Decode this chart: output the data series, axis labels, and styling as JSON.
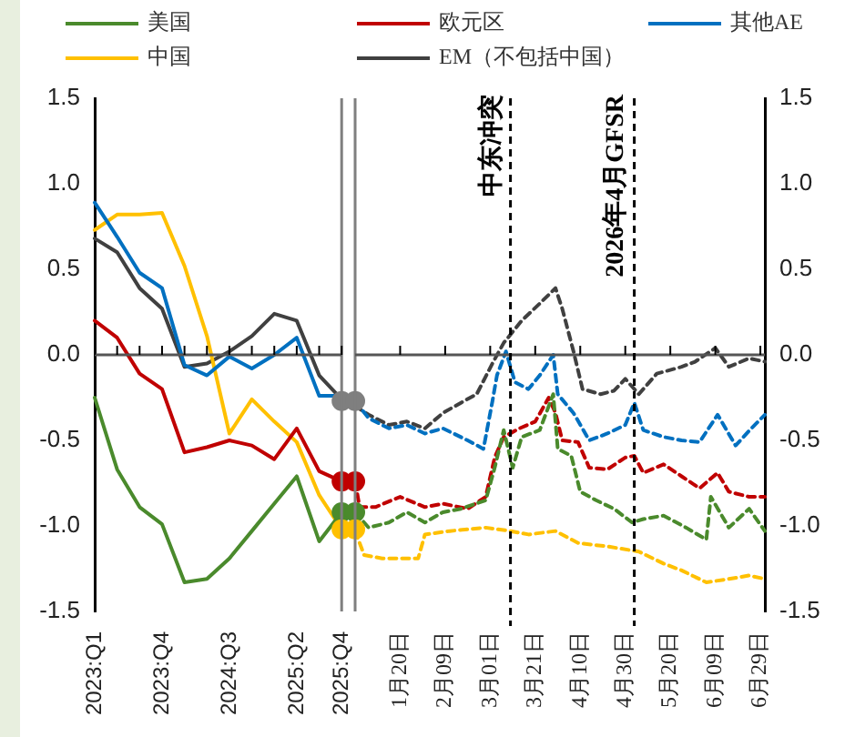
{
  "chart_data": [
    {
      "type": "line",
      "legend": "top",
      "categories": [
        "2023:Q1",
        null,
        null,
        "2023:Q4",
        null,
        null,
        "2024:Q3",
        null,
        null,
        "2025:Q2",
        null,
        "2025:Q4"
      ],
      "ylim": [
        -1.5,
        1.5
      ],
      "yticks": [
        -1.5,
        {
          "value": -1,
          "label": "-1.0"
        },
        -0.5,
        {
          "value": 0,
          "label": "0.0"
        },
        0.5,
        {
          "value": 1,
          "label": "1.0"
        },
        1.5
      ],
      "series": [
        {
          "name": "美国",
          "color": "#4a8a2c",
          "values": [
            -0.25,
            -0.67,
            -0.89,
            -0.99,
            -1.33,
            -1.31,
            -1.19,
            -1.03,
            -0.87,
            -0.71,
            -1.09,
            -0.92
          ]
        },
        {
          "name": "欧元区",
          "color": "#c00000",
          "values": [
            0.2,
            0.1,
            -0.11,
            -0.2,
            -0.57,
            -0.54,
            -0.5,
            -0.53,
            -0.61,
            -0.43,
            -0.68,
            -0.74
          ]
        },
        {
          "name": "其他AE",
          "color": "#0070c0",
          "values": [
            0.89,
            0.69,
            0.48,
            0.39,
            -0.06,
            -0.12,
            -0.01,
            -0.08,
            0.0,
            0.1,
            -0.24,
            -0.24
          ]
        },
        {
          "name": "中国",
          "color": "#ffc000",
          "values": [
            0.73,
            0.82,
            0.82,
            0.83,
            0.52,
            0.11,
            -0.46,
            -0.26,
            -0.39,
            -0.51,
            -0.82,
            -1.02
          ]
        },
        {
          "name": "EM（不包括中国）",
          "color": "#404040",
          "values": [
            0.68,
            0.6,
            0.39,
            0.27,
            -0.07,
            -0.05,
            0.02,
            0.11,
            0.24,
            0.2,
            -0.12,
            -0.26
          ]
        },
        {
          "type": "scatter",
          "marker": "circle",
          "x": [
            "2025:Q4",
            "2025:Q4",
            "2025:Q4",
            "2025:Q4"
          ],
          "values": [
            -0.27,
            -0.74,
            -0.92,
            -1.02
          ],
          "colors": [
            "#7f7f7f",
            "#c00000",
            "#4a8a2c",
            "#ffc000"
          ]
        }
      ]
    },
    {
      "type": "line",
      "line_style": "dashed",
      "xlim": [
        "2025-12-31",
        "2026-07-01"
      ],
      "xticks": [
        {
          "value": "2026-01-20",
          "label": "1月20日"
        },
        {
          "value": "2026-02-09",
          "label": "2月09日"
        },
        {
          "value": "2026-03-01",
          "label": "3月01日"
        },
        {
          "value": "2026-03-21",
          "label": "3月21日"
        },
        {
          "value": "2026-04-10",
          "label": "4月10日"
        },
        {
          "value": "2026-04-30",
          "label": "4月30日"
        },
        {
          "value": "2026-05-20",
          "label": "5月20日"
        },
        {
          "value": "2026-06-09",
          "label": "6月09日"
        },
        {
          "value": "2026-06-29",
          "label": "6月29日"
        }
      ],
      "ylim": [
        -1.5,
        1.5
      ],
      "yticks": [
        -1.5,
        {
          "value": -1,
          "label": "-1.0"
        },
        -0.5,
        {
          "value": 0,
          "label": "0.0"
        },
        0.5,
        {
          "value": 1,
          "label": "1.0"
        },
        1.5
      ],
      "ref_lines": [
        {
          "axis": "x",
          "value": "2026-03-10",
          "label": "中东冲突",
          "line_style": "dashed",
          "color": "#000000"
        },
        {
          "axis": "x",
          "value": "2026-05-04",
          "label": "2026年4月GFSR",
          "line_style": "dashed",
          "color": "#000000"
        }
      ],
      "series": [
        {
          "color": "#4a8a2c",
          "x": [
            "2025-12-31",
            "2026-01-06",
            "2026-01-15",
            "2026-01-23",
            "2026-01-31",
            "2026-02-08",
            "2026-02-16",
            "2026-02-27",
            "2026-03-03",
            "2026-03-07",
            "2026-03-11",
            "2026-03-15",
            "2026-03-23",
            "2026-03-29",
            "2026-03-31",
            "2026-04-06",
            "2026-04-10",
            "2026-04-17",
            "2026-04-25",
            "2026-05-03",
            "2026-05-08",
            "2026-05-17",
            "2026-05-27",
            "2026-06-05",
            "2026-06-07",
            "2026-06-15",
            "2026-06-24",
            "2026-07-01"
          ],
          "values": [
            -0.92,
            -1.01,
            -0.98,
            -0.92,
            -0.98,
            -0.92,
            -0.9,
            -0.85,
            -0.66,
            -0.44,
            -0.66,
            -0.48,
            -0.44,
            -0.23,
            -0.55,
            -0.59,
            -0.8,
            -0.85,
            -0.9,
            -0.98,
            -0.96,
            -0.94,
            -1.01,
            -1.08,
            -0.83,
            -1.01,
            -0.9,
            -1.03
          ]
        },
        {
          "color": "#c00000",
          "x": [
            "2025-12-31",
            "2026-01-02",
            "2026-01-09",
            "2026-01-20",
            "2026-01-31",
            "2026-02-08",
            "2026-02-19",
            "2026-02-27",
            "2026-03-03",
            "2026-03-07",
            "2026-03-14",
            "2026-03-21",
            "2026-03-27",
            "2026-03-30",
            "2026-04-02",
            "2026-04-09",
            "2026-04-14",
            "2026-04-22",
            "2026-04-30",
            "2026-05-04",
            "2026-05-08",
            "2026-05-17",
            "2026-05-25",
            "2026-06-02",
            "2026-06-10",
            "2026-06-15",
            "2026-06-24",
            "2026-07-01"
          ],
          "values": [
            -0.74,
            -0.89,
            -0.89,
            -0.83,
            -0.89,
            -0.87,
            -0.9,
            -0.83,
            -0.6,
            -0.48,
            -0.43,
            -0.39,
            -0.25,
            -0.34,
            -0.5,
            -0.51,
            -0.66,
            -0.67,
            -0.6,
            -0.59,
            -0.69,
            -0.64,
            -0.71,
            -0.78,
            -0.69,
            -0.8,
            -0.83,
            -0.83
          ]
        },
        {
          "color": "#0070c0",
          "x": [
            "2025-12-31",
            "2026-01-06",
            "2026-01-15",
            "2026-01-23",
            "2026-01-31",
            "2026-02-08",
            "2026-02-19",
            "2026-02-26",
            "2026-03-02",
            "2026-03-04",
            "2026-03-08",
            "2026-03-12",
            "2026-03-18",
            "2026-03-23",
            "2026-03-29",
            "2026-03-31",
            "2026-04-07",
            "2026-04-14",
            "2026-04-22",
            "2026-04-30",
            "2026-05-04",
            "2026-05-08",
            "2026-05-17",
            "2026-05-25",
            "2026-06-02",
            "2026-06-10",
            "2026-06-18",
            "2026-06-25",
            "2026-07-01"
          ],
          "values": [
            -0.27,
            -0.37,
            -0.43,
            -0.41,
            -0.46,
            -0.43,
            -0.5,
            -0.55,
            -0.27,
            -0.12,
            0.02,
            -0.16,
            -0.2,
            -0.12,
            0.0,
            -0.23,
            -0.34,
            -0.5,
            -0.46,
            -0.41,
            -0.28,
            -0.44,
            -0.48,
            -0.5,
            -0.51,
            -0.35,
            -0.53,
            -0.43,
            -0.35
          ]
        },
        {
          "color": "#ffc000",
          "x": [
            "2025-12-31",
            "2026-01-04",
            "2026-01-12",
            "2026-01-28",
            "2026-01-31",
            "2026-02-11",
            "2026-02-27",
            "2026-03-10",
            "2026-03-18",
            "2026-03-30",
            "2026-04-09",
            "2026-04-22",
            "2026-05-06",
            "2026-05-17",
            "2026-05-25",
            "2026-06-05",
            "2026-06-15",
            "2026-06-24",
            "2026-07-01"
          ],
          "values": [
            -1.03,
            -1.17,
            -1.19,
            -1.19,
            -1.05,
            -1.03,
            -1.01,
            -1.03,
            -1.05,
            -1.03,
            -1.1,
            -1.12,
            -1.15,
            -1.22,
            -1.26,
            -1.33,
            -1.31,
            -1.29,
            -1.31
          ]
        },
        {
          "color": "#404040",
          "x": [
            "2025-12-31",
            "2026-01-06",
            "2026-01-15",
            "2026-01-23",
            "2026-01-31",
            "2026-02-08",
            "2026-02-16",
            "2026-02-23",
            "2026-03-02",
            "2026-03-07",
            "2026-03-15",
            "2026-03-23",
            "2026-03-30",
            "2026-04-02",
            "2026-04-07",
            "2026-04-11",
            "2026-04-19",
            "2026-04-25",
            "2026-04-30",
            "2026-05-06",
            "2026-05-14",
            "2026-05-25",
            "2026-05-31",
            "2026-06-09",
            "2026-06-15",
            "2026-06-24",
            "2026-07-01"
          ],
          "values": [
            -0.3,
            -0.35,
            -0.41,
            -0.39,
            -0.43,
            -0.34,
            -0.28,
            -0.23,
            -0.05,
            0.07,
            0.2,
            0.3,
            0.39,
            0.27,
            0.02,
            -0.2,
            -0.23,
            -0.21,
            -0.14,
            -0.23,
            -0.11,
            -0.07,
            -0.04,
            0.04,
            -0.07,
            -0.02,
            -0.04
          ]
        },
        {
          "type": "scatter",
          "marker": "circle",
          "x": [
            "2025-12-31",
            "2025-12-31",
            "2025-12-31",
            "2025-12-31"
          ],
          "values": [
            -0.27,
            -0.74,
            -0.92,
            -1.02
          ],
          "colors": [
            "#7f7f7f",
            "#c00000",
            "#4a8a2c",
            "#ffc000"
          ]
        }
      ]
    }
  ]
}
